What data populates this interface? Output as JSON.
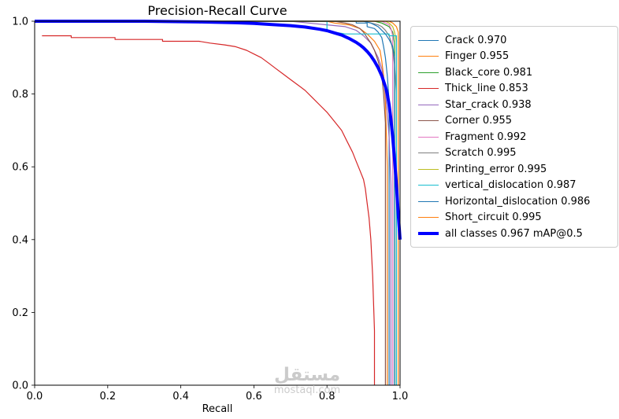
{
  "watermark": {
    "arabic": "مستقل",
    "domain": "mostaql.com"
  },
  "chart_data": {
    "type": "line",
    "title": "Precision-Recall Curve",
    "xlabel": "Recall",
    "ylabel": "",
    "xlim": [
      0,
      1
    ],
    "ylim": [
      0,
      1
    ],
    "xticks": [
      0.0,
      0.2,
      0.4,
      0.6,
      0.8,
      1.0
    ],
    "yticks": [
      0.0,
      0.2,
      0.4,
      0.6,
      0.8,
      1.0
    ],
    "grid": false,
    "legend_position": "outside-upper-right",
    "series": [
      {
        "name": "Crack",
        "ap": 0.97,
        "label": "Crack 0.970",
        "color": "#1f77b4",
        "width": 1.2,
        "points": [
          [
            0,
            1
          ],
          [
            0.88,
            1
          ],
          [
            0.88,
            0.995
          ],
          [
            0.91,
            0.995
          ],
          [
            0.91,
            0.985
          ],
          [
            0.93,
            0.98
          ],
          [
            0.94,
            0.97
          ],
          [
            0.95,
            0.955
          ],
          [
            0.955,
            0.93
          ],
          [
            0.96,
            0.9
          ],
          [
            0.965,
            0.85
          ],
          [
            0.97,
            0.78
          ],
          [
            0.97,
            0
          ]
        ]
      },
      {
        "name": "Finger",
        "ap": 0.955,
        "label": "Finger 0.955",
        "color": "#ff7f0e",
        "width": 1.2,
        "points": [
          [
            0,
            1
          ],
          [
            0.8,
            1
          ],
          [
            0.82,
            0.995
          ],
          [
            0.86,
            0.99
          ],
          [
            0.89,
            0.98
          ],
          [
            0.91,
            0.965
          ],
          [
            0.93,
            0.945
          ],
          [
            0.945,
            0.92
          ],
          [
            0.95,
            0.89
          ],
          [
            0.955,
            0.85
          ],
          [
            0.96,
            0.78
          ],
          [
            0.965,
            0.6
          ],
          [
            0.965,
            0
          ]
        ]
      },
      {
        "name": "Black_core",
        "ap": 0.981,
        "label": "Black_core 0.981",
        "color": "#2ca02c",
        "width": 1.2,
        "points": [
          [
            0,
            1
          ],
          [
            0.93,
            1
          ],
          [
            0.95,
            0.995
          ],
          [
            0.97,
            0.985
          ],
          [
            0.98,
            0.97
          ],
          [
            0.985,
            0.94
          ],
          [
            0.985,
            0
          ]
        ]
      },
      {
        "name": "Thick_line",
        "ap": 0.853,
        "label": "Thick_line 0.853",
        "color": "#d62728",
        "width": 1.2,
        "points": [
          [
            0.02,
            0.96
          ],
          [
            0.1,
            0.96
          ],
          [
            0.1,
            0.955
          ],
          [
            0.22,
            0.955
          ],
          [
            0.22,
            0.95
          ],
          [
            0.35,
            0.95
          ],
          [
            0.35,
            0.945
          ],
          [
            0.45,
            0.945
          ],
          [
            0.48,
            0.94
          ],
          [
            0.52,
            0.935
          ],
          [
            0.55,
            0.93
          ],
          [
            0.58,
            0.92
          ],
          [
            0.6,
            0.91
          ],
          [
            0.62,
            0.9
          ],
          [
            0.64,
            0.885
          ],
          [
            0.66,
            0.87
          ],
          [
            0.68,
            0.855
          ],
          [
            0.7,
            0.84
          ],
          [
            0.72,
            0.825
          ],
          [
            0.74,
            0.81
          ],
          [
            0.76,
            0.79
          ],
          [
            0.78,
            0.77
          ],
          [
            0.8,
            0.75
          ],
          [
            0.82,
            0.725
          ],
          [
            0.84,
            0.7
          ],
          [
            0.855,
            0.67
          ],
          [
            0.87,
            0.64
          ],
          [
            0.88,
            0.615
          ],
          [
            0.89,
            0.59
          ],
          [
            0.9,
            0.565
          ],
          [
            0.905,
            0.54
          ],
          [
            0.91,
            0.5
          ],
          [
            0.915,
            0.46
          ],
          [
            0.92,
            0.4
          ],
          [
            0.925,
            0.3
          ],
          [
            0.93,
            0.15
          ],
          [
            0.93,
            0
          ]
        ]
      },
      {
        "name": "Star_crack",
        "ap": 0.938,
        "label": "Star_crack 0.938",
        "color": "#9467bd",
        "width": 1.2,
        "points": [
          [
            0,
            1
          ],
          [
            0.7,
            1
          ],
          [
            0.75,
            0.995
          ],
          [
            0.8,
            0.99
          ],
          [
            0.85,
            0.985
          ],
          [
            0.88,
            0.975
          ],
          [
            0.9,
            0.96
          ],
          [
            0.92,
            0.94
          ],
          [
            0.93,
            0.92
          ],
          [
            0.94,
            0.9
          ],
          [
            0.95,
            0.87
          ],
          [
            0.955,
            0.84
          ],
          [
            0.96,
            0.8
          ],
          [
            0.965,
            0.75
          ],
          [
            0.97,
            0.68
          ],
          [
            0.975,
            0.55
          ],
          [
            0.975,
            0
          ]
        ]
      },
      {
        "name": "Corner",
        "ap": 0.955,
        "label": "Corner 0.955",
        "color": "#8c564b",
        "width": 1.2,
        "points": [
          [
            0,
            1
          ],
          [
            0.82,
            1
          ],
          [
            0.85,
            0.995
          ],
          [
            0.87,
            0.99
          ],
          [
            0.89,
            0.98
          ],
          [
            0.9,
            0.97
          ],
          [
            0.91,
            0.955
          ],
          [
            0.92,
            0.94
          ],
          [
            0.93,
            0.92
          ],
          [
            0.94,
            0.89
          ],
          [
            0.95,
            0.85
          ],
          [
            0.955,
            0.8
          ],
          [
            0.96,
            0.72
          ],
          [
            0.96,
            0
          ]
        ]
      },
      {
        "name": "Fragment",
        "ap": 0.992,
        "label": "Fragment 0.992",
        "color": "#e377c2",
        "width": 1.2,
        "points": [
          [
            0,
            1
          ],
          [
            0.95,
            1
          ],
          [
            0.96,
            0.995
          ],
          [
            0.97,
            0.99
          ],
          [
            0.975,
            0.98
          ],
          [
            0.98,
            0.96
          ],
          [
            0.98,
            0
          ]
        ]
      },
      {
        "name": "Scratch",
        "ap": 0.995,
        "label": "Scratch 0.995",
        "color": "#7f7f7f",
        "width": 1.2,
        "points": [
          [
            0,
            1
          ],
          [
            0.9,
            1
          ],
          [
            0.92,
            0.995
          ],
          [
            0.94,
            0.99
          ],
          [
            0.95,
            0.985
          ],
          [
            0.96,
            0.975
          ],
          [
            0.97,
            0.96
          ],
          [
            0.975,
            0.945
          ],
          [
            0.98,
            0.92
          ],
          [
            0.985,
            0.88
          ],
          [
            0.99,
            0.8
          ],
          [
            0.99,
            0
          ]
        ]
      },
      {
        "name": "Printing_error",
        "ap": 0.995,
        "label": "Printing_error 0.995",
        "color": "#bcbd22",
        "width": 1.2,
        "points": [
          [
            0,
            1
          ],
          [
            0.96,
            1
          ],
          [
            0.97,
            0.995
          ],
          [
            0.98,
            0.985
          ],
          [
            0.985,
            0.97
          ],
          [
            0.99,
            0.94
          ],
          [
            0.99,
            0
          ]
        ]
      },
      {
        "name": "vertical_dislocation",
        "ap": 0.987,
        "label": "vertical_dislocation 0.987",
        "color": "#17becf",
        "width": 1.2,
        "points": [
          [
            0,
            1
          ],
          [
            0.8,
            1
          ],
          [
            0.8,
            0.975
          ],
          [
            0.82,
            0.97
          ],
          [
            0.85,
            0.965
          ],
          [
            0.97,
            0.965
          ],
          [
            0.97,
            0.96
          ],
          [
            0.99,
            0.96
          ],
          [
            0.99,
            0
          ]
        ]
      },
      {
        "name": "Horizontal_dislocation",
        "ap": 0.986,
        "label": "Horizontal_dislocation 0.986",
        "color": "#1f77b4",
        "width": 1.2,
        "points": [
          [
            0,
            1
          ],
          [
            0.9,
            1
          ],
          [
            0.92,
            0.995
          ],
          [
            0.94,
            0.985
          ],
          [
            0.95,
            0.975
          ],
          [
            0.96,
            0.965
          ],
          [
            0.97,
            0.95
          ],
          [
            0.98,
            0.93
          ],
          [
            0.985,
            0.9
          ],
          [
            0.985,
            0
          ]
        ]
      },
      {
        "name": "Short_circuit",
        "ap": 0.995,
        "label": "Short_circuit 0.995",
        "color": "#ff7f0e",
        "width": 1.2,
        "points": [
          [
            0,
            1
          ],
          [
            0.97,
            1
          ],
          [
            0.98,
            0.995
          ],
          [
            0.99,
            0.985
          ],
          [
            0.995,
            0.97
          ],
          [
            0.995,
            0
          ]
        ]
      },
      {
        "name": "all_classes",
        "ap": 0.967,
        "label": "all classes 0.967 mAP@0.5",
        "color": "#0000ff",
        "width": 4,
        "points": [
          [
            0,
            1
          ],
          [
            0.3,
            1
          ],
          [
            0.45,
            0.998
          ],
          [
            0.55,
            0.996
          ],
          [
            0.6,
            0.994
          ],
          [
            0.65,
            0.991
          ],
          [
            0.7,
            0.988
          ],
          [
            0.74,
            0.984
          ],
          [
            0.78,
            0.978
          ],
          [
            0.8,
            0.974
          ],
          [
            0.82,
            0.968
          ],
          [
            0.84,
            0.962
          ],
          [
            0.86,
            0.953
          ],
          [
            0.88,
            0.942
          ],
          [
            0.89,
            0.935
          ],
          [
            0.9,
            0.927
          ],
          [
            0.91,
            0.917
          ],
          [
            0.92,
            0.905
          ],
          [
            0.93,
            0.89
          ],
          [
            0.94,
            0.872
          ],
          [
            0.95,
            0.85
          ],
          [
            0.96,
            0.82
          ],
          [
            0.965,
            0.8
          ],
          [
            0.97,
            0.77
          ],
          [
            0.975,
            0.73
          ],
          [
            0.98,
            0.68
          ],
          [
            0.985,
            0.62
          ],
          [
            0.99,
            0.55
          ],
          [
            0.995,
            0.47
          ],
          [
            1.0,
            0.4
          ]
        ]
      }
    ]
  }
}
